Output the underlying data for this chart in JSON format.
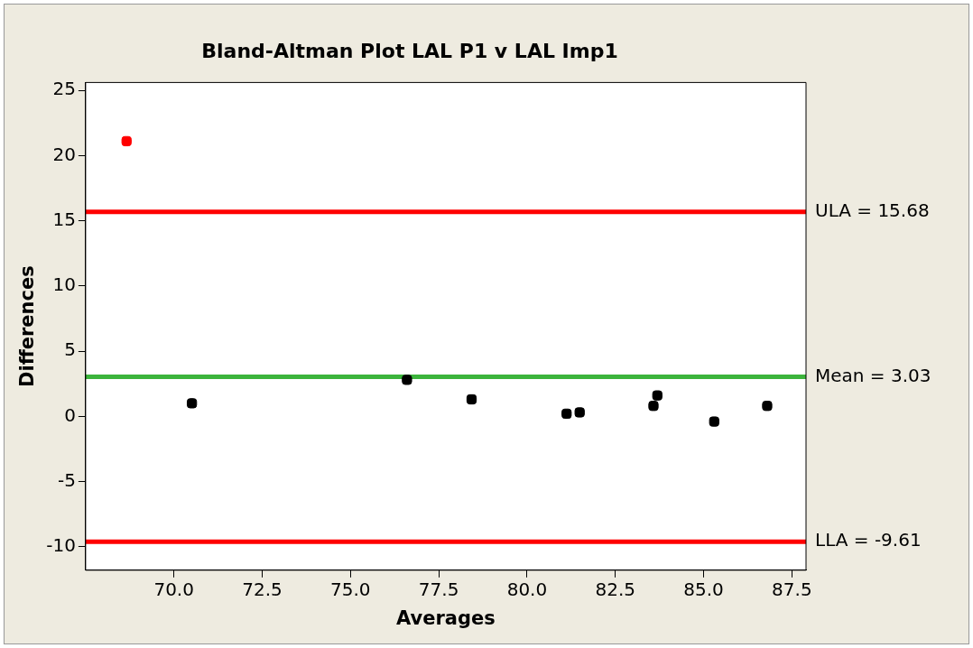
{
  "chart_data": {
    "type": "scatter",
    "title": "Bland-Altman Plot LAL P1 v LAL Imp1",
    "xlabel": "Averages",
    "ylabel": "Differences",
    "x": [
      68.66,
      70.51,
      76.6,
      78.43,
      81.12,
      81.49,
      83.58,
      83.69,
      85.3,
      86.8
    ],
    "values": [
      21.1,
      1.0,
      2.8,
      1.3,
      0.2,
      0.3,
      0.8,
      1.6,
      -0.4,
      0.8
    ],
    "colors": [
      "#ff0000",
      "#000000",
      "#000000",
      "#000000",
      "#000000",
      "#000000",
      "#000000",
      "#000000",
      "#000000",
      "#000000"
    ],
    "marker": "square",
    "xlim": [
      67.5,
      87.9
    ],
    "xticks": [
      {
        "value": 70,
        "label": "70.0"
      },
      {
        "value": 72.5,
        "label": "72.5"
      },
      {
        "value": 75,
        "label": "75.0"
      },
      {
        "value": 77.5,
        "label": "77.5"
      },
      {
        "value": 80,
        "label": "80.0"
      },
      {
        "value": 82.5,
        "label": "82.5"
      },
      {
        "value": 85,
        "label": "85.0"
      },
      {
        "value": 87.5,
        "label": "87.5"
      }
    ],
    "ylim": [
      -11.8,
      25.6
    ],
    "yticks": [
      -10,
      -5,
      0,
      5,
      10,
      15,
      20,
      25
    ],
    "grid": false,
    "legend": false,
    "ref_lines": [
      {
        "axis": "y",
        "value": 15.68,
        "label": "ULA = 15.68",
        "color": "#ff0000"
      },
      {
        "axis": "y",
        "value": 3.03,
        "label": "Mean = 3.03",
        "color": "#3cb43c"
      },
      {
        "axis": "y",
        "value": -9.61,
        "label": "LLA = -9.61",
        "color": "#ff0000"
      }
    ]
  }
}
